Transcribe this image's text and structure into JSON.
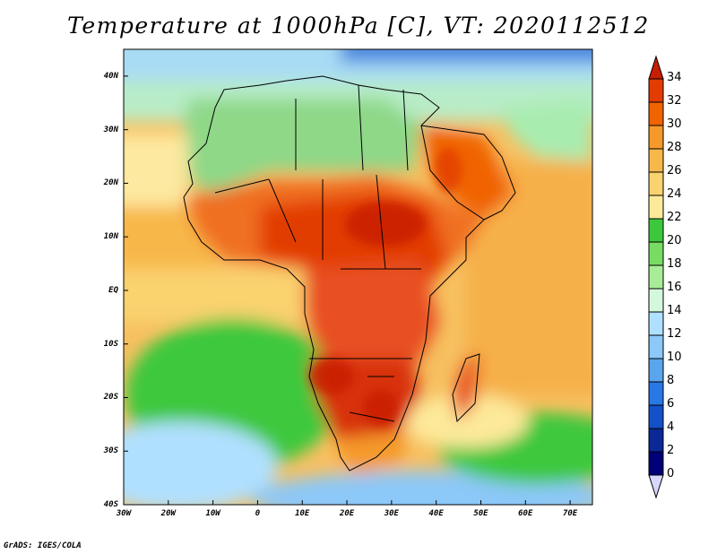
{
  "title": "Temperature at 1000hPa [C], VT: 2020112512",
  "credit": "GrADS: IGES/COLA",
  "map": {
    "field": "Temperature at 1000hPa",
    "units": "C",
    "valid_time": "2020112512",
    "lon_range": [
      -30,
      75
    ],
    "lat_range": [
      -40,
      45
    ],
    "lat_labels": [
      "40N",
      "30N",
      "20N",
      "10N",
      "EQ",
      "10S",
      "20S",
      "30S",
      "40S"
    ],
    "lat_values": [
      40,
      30,
      20,
      10,
      0,
      -10,
      -20,
      -30,
      -40
    ],
    "lon_labels": [
      "30W",
      "20W",
      "10W",
      "0",
      "10E",
      "20E",
      "30E",
      "40E",
      "50E",
      "60E",
      "70E"
    ],
    "lon_values": [
      -30,
      -20,
      -10,
      0,
      10,
      20,
      30,
      40,
      50,
      60,
      70
    ]
  },
  "colorbar": {
    "labels": [
      "34",
      "32",
      "30",
      "28",
      "26",
      "24",
      "22",
      "20",
      "18",
      "16",
      "14",
      "12",
      "10",
      "8",
      "6",
      "4",
      "2",
      "0"
    ],
    "colors": [
      "#c81e00",
      "#e23c00",
      "#f06400",
      "#f59a2a",
      "#f7b84a",
      "#fad26e",
      "#fde99a",
      "#3cc83c",
      "#78dc64",
      "#a8ec98",
      "#d4f8dc",
      "#b0e0ff",
      "#8cc8f8",
      "#5aa5ec",
      "#2878e6",
      "#1450c8",
      "#0a2896",
      "#000078",
      "#d8d8ff"
    ]
  }
}
